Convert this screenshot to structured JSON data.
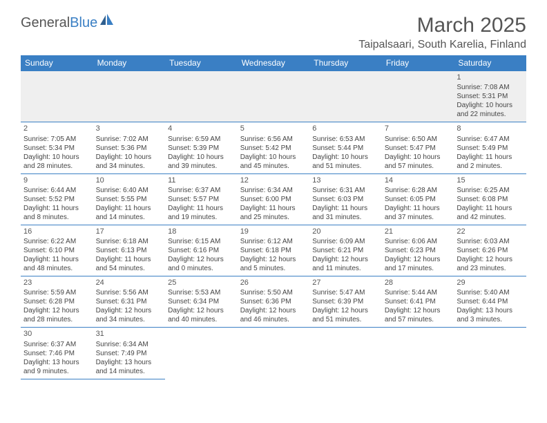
{
  "brand": {
    "part1": "General",
    "part2": "Blue"
  },
  "title": "March 2025",
  "location": "Taipalsaari, South Karelia, Finland",
  "colors": {
    "header_bg": "#3a7fc4",
    "header_text": "#ffffff",
    "cell_border": "#3a7fc4",
    "first_row_bg": "#efefef",
    "body_text": "#444444",
    "title_text": "#555555"
  },
  "daysOfWeek": [
    "Sunday",
    "Monday",
    "Tuesday",
    "Wednesday",
    "Thursday",
    "Friday",
    "Saturday"
  ],
  "weeks": [
    [
      null,
      null,
      null,
      null,
      null,
      null,
      {
        "n": "1",
        "sr": "Sunrise: 7:08 AM",
        "ss": "Sunset: 5:31 PM",
        "d1": "Daylight: 10 hours",
        "d2": "and 22 minutes."
      }
    ],
    [
      {
        "n": "2",
        "sr": "Sunrise: 7:05 AM",
        "ss": "Sunset: 5:34 PM",
        "d1": "Daylight: 10 hours",
        "d2": "and 28 minutes."
      },
      {
        "n": "3",
        "sr": "Sunrise: 7:02 AM",
        "ss": "Sunset: 5:36 PM",
        "d1": "Daylight: 10 hours",
        "d2": "and 34 minutes."
      },
      {
        "n": "4",
        "sr": "Sunrise: 6:59 AM",
        "ss": "Sunset: 5:39 PM",
        "d1": "Daylight: 10 hours",
        "d2": "and 39 minutes."
      },
      {
        "n": "5",
        "sr": "Sunrise: 6:56 AM",
        "ss": "Sunset: 5:42 PM",
        "d1": "Daylight: 10 hours",
        "d2": "and 45 minutes."
      },
      {
        "n": "6",
        "sr": "Sunrise: 6:53 AM",
        "ss": "Sunset: 5:44 PM",
        "d1": "Daylight: 10 hours",
        "d2": "and 51 minutes."
      },
      {
        "n": "7",
        "sr": "Sunrise: 6:50 AM",
        "ss": "Sunset: 5:47 PM",
        "d1": "Daylight: 10 hours",
        "d2": "and 57 minutes."
      },
      {
        "n": "8",
        "sr": "Sunrise: 6:47 AM",
        "ss": "Sunset: 5:49 PM",
        "d1": "Daylight: 11 hours",
        "d2": "and 2 minutes."
      }
    ],
    [
      {
        "n": "9",
        "sr": "Sunrise: 6:44 AM",
        "ss": "Sunset: 5:52 PM",
        "d1": "Daylight: 11 hours",
        "d2": "and 8 minutes."
      },
      {
        "n": "10",
        "sr": "Sunrise: 6:40 AM",
        "ss": "Sunset: 5:55 PM",
        "d1": "Daylight: 11 hours",
        "d2": "and 14 minutes."
      },
      {
        "n": "11",
        "sr": "Sunrise: 6:37 AM",
        "ss": "Sunset: 5:57 PM",
        "d1": "Daylight: 11 hours",
        "d2": "and 19 minutes."
      },
      {
        "n": "12",
        "sr": "Sunrise: 6:34 AM",
        "ss": "Sunset: 6:00 PM",
        "d1": "Daylight: 11 hours",
        "d2": "and 25 minutes."
      },
      {
        "n": "13",
        "sr": "Sunrise: 6:31 AM",
        "ss": "Sunset: 6:03 PM",
        "d1": "Daylight: 11 hours",
        "d2": "and 31 minutes."
      },
      {
        "n": "14",
        "sr": "Sunrise: 6:28 AM",
        "ss": "Sunset: 6:05 PM",
        "d1": "Daylight: 11 hours",
        "d2": "and 37 minutes."
      },
      {
        "n": "15",
        "sr": "Sunrise: 6:25 AM",
        "ss": "Sunset: 6:08 PM",
        "d1": "Daylight: 11 hours",
        "d2": "and 42 minutes."
      }
    ],
    [
      {
        "n": "16",
        "sr": "Sunrise: 6:22 AM",
        "ss": "Sunset: 6:10 PM",
        "d1": "Daylight: 11 hours",
        "d2": "and 48 minutes."
      },
      {
        "n": "17",
        "sr": "Sunrise: 6:18 AM",
        "ss": "Sunset: 6:13 PM",
        "d1": "Daylight: 11 hours",
        "d2": "and 54 minutes."
      },
      {
        "n": "18",
        "sr": "Sunrise: 6:15 AM",
        "ss": "Sunset: 6:16 PM",
        "d1": "Daylight: 12 hours",
        "d2": "and 0 minutes."
      },
      {
        "n": "19",
        "sr": "Sunrise: 6:12 AM",
        "ss": "Sunset: 6:18 PM",
        "d1": "Daylight: 12 hours",
        "d2": "and 5 minutes."
      },
      {
        "n": "20",
        "sr": "Sunrise: 6:09 AM",
        "ss": "Sunset: 6:21 PM",
        "d1": "Daylight: 12 hours",
        "d2": "and 11 minutes."
      },
      {
        "n": "21",
        "sr": "Sunrise: 6:06 AM",
        "ss": "Sunset: 6:23 PM",
        "d1": "Daylight: 12 hours",
        "d2": "and 17 minutes."
      },
      {
        "n": "22",
        "sr": "Sunrise: 6:03 AM",
        "ss": "Sunset: 6:26 PM",
        "d1": "Daylight: 12 hours",
        "d2": "and 23 minutes."
      }
    ],
    [
      {
        "n": "23",
        "sr": "Sunrise: 5:59 AM",
        "ss": "Sunset: 6:28 PM",
        "d1": "Daylight: 12 hours",
        "d2": "and 28 minutes."
      },
      {
        "n": "24",
        "sr": "Sunrise: 5:56 AM",
        "ss": "Sunset: 6:31 PM",
        "d1": "Daylight: 12 hours",
        "d2": "and 34 minutes."
      },
      {
        "n": "25",
        "sr": "Sunrise: 5:53 AM",
        "ss": "Sunset: 6:34 PM",
        "d1": "Daylight: 12 hours",
        "d2": "and 40 minutes."
      },
      {
        "n": "26",
        "sr": "Sunrise: 5:50 AM",
        "ss": "Sunset: 6:36 PM",
        "d1": "Daylight: 12 hours",
        "d2": "and 46 minutes."
      },
      {
        "n": "27",
        "sr": "Sunrise: 5:47 AM",
        "ss": "Sunset: 6:39 PM",
        "d1": "Daylight: 12 hours",
        "d2": "and 51 minutes."
      },
      {
        "n": "28",
        "sr": "Sunrise: 5:44 AM",
        "ss": "Sunset: 6:41 PM",
        "d1": "Daylight: 12 hours",
        "d2": "and 57 minutes."
      },
      {
        "n": "29",
        "sr": "Sunrise: 5:40 AM",
        "ss": "Sunset: 6:44 PM",
        "d1": "Daylight: 13 hours",
        "d2": "and 3 minutes."
      }
    ],
    [
      {
        "n": "30",
        "sr": "Sunrise: 6:37 AM",
        "ss": "Sunset: 7:46 PM",
        "d1": "Daylight: 13 hours",
        "d2": "and 9 minutes."
      },
      {
        "n": "31",
        "sr": "Sunrise: 6:34 AM",
        "ss": "Sunset: 7:49 PM",
        "d1": "Daylight: 13 hours",
        "d2": "and 14 minutes."
      },
      null,
      null,
      null,
      null,
      null
    ]
  ]
}
